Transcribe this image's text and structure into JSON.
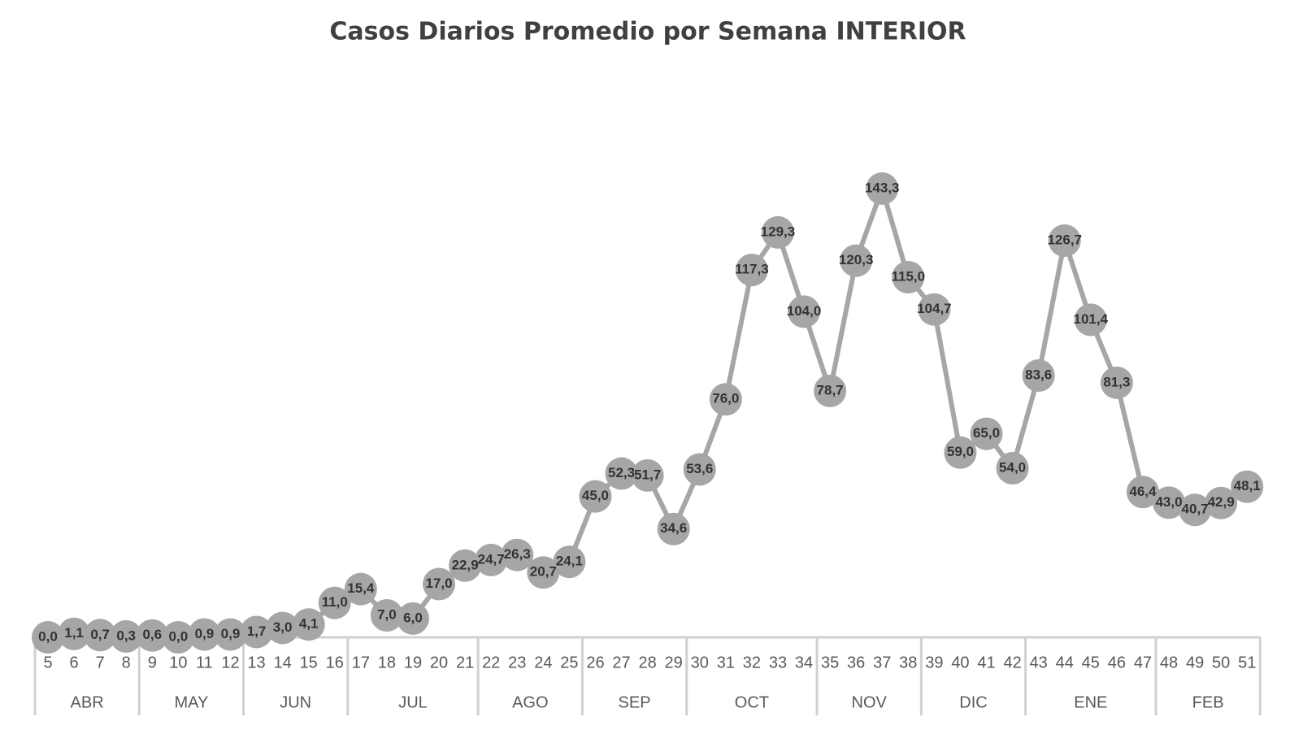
{
  "chart_data": {
    "type": "line",
    "title": "Casos Diarios  Promedio por Semana INTERIOR",
    "groups": [
      {
        "label": "ABR",
        "categories": [
          "5",
          "6",
          "7",
          "8"
        ]
      },
      {
        "label": "MAY",
        "categories": [
          "9",
          "10",
          "11",
          "12"
        ]
      },
      {
        "label": "JUN",
        "categories": [
          "13",
          "14",
          "15",
          "16"
        ]
      },
      {
        "label": "JUL",
        "categories": [
          "17",
          "18",
          "19",
          "20",
          "21"
        ]
      },
      {
        "label": "AGO",
        "categories": [
          "22",
          "23",
          "24",
          "25"
        ]
      },
      {
        "label": "SEP",
        "categories": [
          "26",
          "27",
          "28",
          "29"
        ]
      },
      {
        "label": "OCT",
        "categories": [
          "30",
          "31",
          "32",
          "33",
          "34"
        ]
      },
      {
        "label": "NOV",
        "categories": [
          "35",
          "36",
          "37",
          "38"
        ]
      },
      {
        "label": "DIC",
        "categories": [
          "39",
          "40",
          "41",
          "42"
        ]
      },
      {
        "label": "ENE",
        "categories": [
          "43",
          "44",
          "45",
          "46",
          "47"
        ]
      },
      {
        "label": "FEB",
        "categories": [
          "48",
          "49",
          "50",
          "51"
        ]
      }
    ],
    "color": "#a6a6a6",
    "values": [
      0.0,
      1.1,
      0.7,
      0.3,
      0.6,
      0.0,
      0.9,
      0.9,
      1.7,
      3.0,
      4.1,
      11.0,
      15.4,
      7.0,
      6.0,
      17.0,
      22.9,
      24.7,
      26.3,
      20.7,
      24.1,
      45.0,
      52.3,
      51.7,
      34.6,
      53.6,
      76.0,
      117.3,
      129.3,
      104.0,
      78.7,
      120.3,
      143.3,
      115.0,
      104.7,
      59.0,
      65.0,
      54.0,
      83.6,
      126.7,
      101.4,
      81.3,
      46.4,
      43.0,
      40.7,
      42.9,
      48.1
    ],
    "value_labels": [
      "0,0",
      "1,1",
      "0,7",
      "0,3",
      "0,6",
      "0,0",
      "0,9",
      "0,9",
      "1,7",
      "3,0",
      "4,1",
      "11,0",
      "15,4",
      "7,0",
      "6,0",
      "17,0",
      "22,9",
      "24,7",
      "26,3",
      "20,7",
      "24,1",
      "45,0",
      "52,3",
      "51,7",
      "34,6",
      "53,6",
      "76,0",
      "117,3",
      "129,3",
      "104,0",
      "78,7",
      "120,3",
      "143,3",
      "115,0",
      "104,7",
      "59,0",
      "65,0",
      "54,0",
      "83,6",
      "126,7",
      "101,4",
      "81,3",
      "46,4",
      "43,0",
      "40,7",
      "42,9",
      "48,1"
    ]
  }
}
